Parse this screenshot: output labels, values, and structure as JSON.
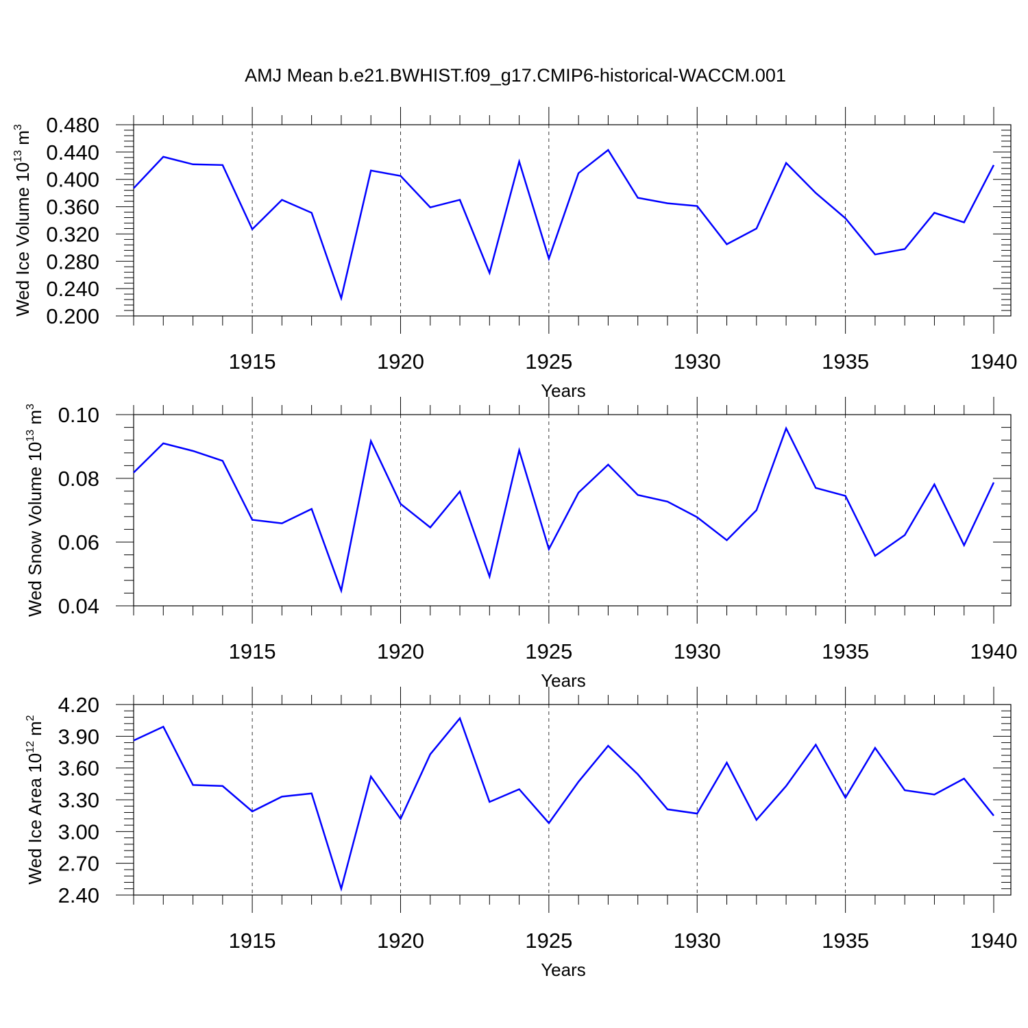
{
  "chart_data": {
    "title": "AMJ Mean b.e21.BWHIST.f09_g17.CMIP6-historical-WACCM.001",
    "type": "line",
    "line_color": "#0000ff",
    "panels": [
      {
        "id": "ice-volume",
        "ylabel": {
          "base": "Wed Ice Volume 10",
          "exp": "13",
          "unit": " m",
          "unit_exp": "3"
        },
        "xlabel": "Years",
        "xlim": [
          1911,
          1940
        ],
        "xticks": [
          1915,
          1920,
          1925,
          1930,
          1935,
          1940
        ],
        "ylim": [
          0.2,
          0.48
        ],
        "yticks": [
          0.2,
          0.24,
          0.28,
          0.32,
          0.36,
          0.4,
          0.44,
          0.48
        ],
        "ytick_labels": [
          "0.200",
          "0.240",
          "0.280",
          "0.320",
          "0.360",
          "0.400",
          "0.440",
          "0.480"
        ],
        "grid": true,
        "x": [
          1911,
          1912,
          1913,
          1914,
          1915,
          1916,
          1917,
          1918,
          1919,
          1920,
          1921,
          1922,
          1923,
          1924,
          1925,
          1926,
          1927,
          1928,
          1929,
          1930,
          1931,
          1932,
          1933,
          1934,
          1935,
          1936,
          1937,
          1938,
          1939,
          1940
        ],
        "values": [
          0.387,
          0.433,
          0.422,
          0.421,
          0.327,
          0.37,
          0.351,
          0.226,
          0.413,
          0.405,
          0.359,
          0.37,
          0.263,
          0.426,
          0.284,
          0.409,
          0.443,
          0.373,
          0.365,
          0.361,
          0.305,
          0.328,
          0.424,
          0.38,
          0.343,
          0.29,
          0.298,
          0.351,
          0.337,
          0.421
        ]
      },
      {
        "id": "snow-volume",
        "ylabel": {
          "base": "Wed Snow Volume 10",
          "exp": "13",
          "unit": " m",
          "unit_exp": "3"
        },
        "xlabel": "Years",
        "xlim": [
          1911,
          1940
        ],
        "xticks": [
          1915,
          1920,
          1925,
          1930,
          1935,
          1940
        ],
        "ylim": [
          0.04,
          0.1
        ],
        "yticks": [
          0.04,
          0.06,
          0.08,
          0.1
        ],
        "ytick_labels": [
          "0.04",
          "0.06",
          "0.08",
          "0.10"
        ],
        "grid": true,
        "x": [
          1911,
          1912,
          1913,
          1914,
          1915,
          1916,
          1917,
          1918,
          1919,
          1920,
          1921,
          1922,
          1923,
          1924,
          1925,
          1926,
          1927,
          1928,
          1929,
          1930,
          1931,
          1932,
          1933,
          1934,
          1935,
          1936,
          1937,
          1938,
          1939,
          1940
        ],
        "values": [
          0.0818,
          0.091,
          0.0886,
          0.0855,
          0.067,
          0.0659,
          0.0704,
          0.0448,
          0.0917,
          0.072,
          0.0646,
          0.0759,
          0.0492,
          0.0888,
          0.0578,
          0.0755,
          0.0843,
          0.0748,
          0.0727,
          0.0678,
          0.0606,
          0.07,
          0.0957,
          0.077,
          0.0745,
          0.0557,
          0.0622,
          0.0781,
          0.059,
          0.0787
        ]
      },
      {
        "id": "ice-area",
        "ylabel": {
          "base": "Wed Ice Area 10",
          "exp": "12",
          "unit": " m",
          "unit_exp": "2"
        },
        "xlabel": "Years",
        "xlim": [
          1911,
          1940
        ],
        "xticks": [
          1915,
          1920,
          1925,
          1930,
          1935,
          1940
        ],
        "ylim": [
          2.4,
          4.2
        ],
        "yticks": [
          2.4,
          2.7,
          3.0,
          3.3,
          3.6,
          3.9,
          4.2
        ],
        "ytick_labels": [
          "2.40",
          "2.70",
          "3.00",
          "3.30",
          "3.60",
          "3.90",
          "4.20"
        ],
        "grid": true,
        "x": [
          1911,
          1912,
          1913,
          1914,
          1915,
          1916,
          1917,
          1918,
          1919,
          1920,
          1921,
          1922,
          1923,
          1924,
          1925,
          1926,
          1927,
          1928,
          1929,
          1930,
          1931,
          1932,
          1933,
          1934,
          1935,
          1936,
          1937,
          1938,
          1939,
          1940
        ],
        "values": [
          3.86,
          3.99,
          3.44,
          3.43,
          3.19,
          3.33,
          3.36,
          2.46,
          3.52,
          3.12,
          3.73,
          4.07,
          3.28,
          3.4,
          3.08,
          3.47,
          3.81,
          3.54,
          3.21,
          3.17,
          3.65,
          3.11,
          3.43,
          3.82,
          3.32,
          3.79,
          3.39,
          3.35,
          3.5,
          3.15
        ]
      }
    ]
  }
}
